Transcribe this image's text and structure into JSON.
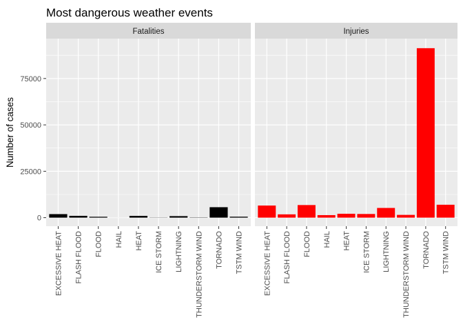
{
  "chart_data": {
    "type": "bar",
    "title": "Most dangerous weather events",
    "xlabel": "",
    "ylabel": "Number of cases",
    "ylim": [
      -4600,
      96500
    ],
    "yticks": [
      0,
      25000,
      50000,
      75000
    ],
    "ytick_labels": [
      "0",
      "25000",
      "50000",
      "75000"
    ],
    "grid": true,
    "legend": "none",
    "categories": [
      "EXCESSIVE HEAT",
      "FLASH FLOOD",
      "FLOOD",
      "HAIL",
      "HEAT",
      "ICE STORM",
      "LIGHTNING",
      "THUNDERSTORM WIND",
      "TORNADO",
      "TSTM WIND"
    ],
    "panels": [
      {
        "label": "Fatalities",
        "color": "#000000",
        "values": [
          1903,
          978,
          470,
          15,
          937,
          89,
          816,
          133,
          5633,
          504
        ]
      },
      {
        "label": "Injuries",
        "color": "#ff0000",
        "values": [
          6525,
          1777,
          6789,
          1361,
          2100,
          1975,
          5230,
          1488,
          91346,
          6957
        ]
      }
    ]
  }
}
